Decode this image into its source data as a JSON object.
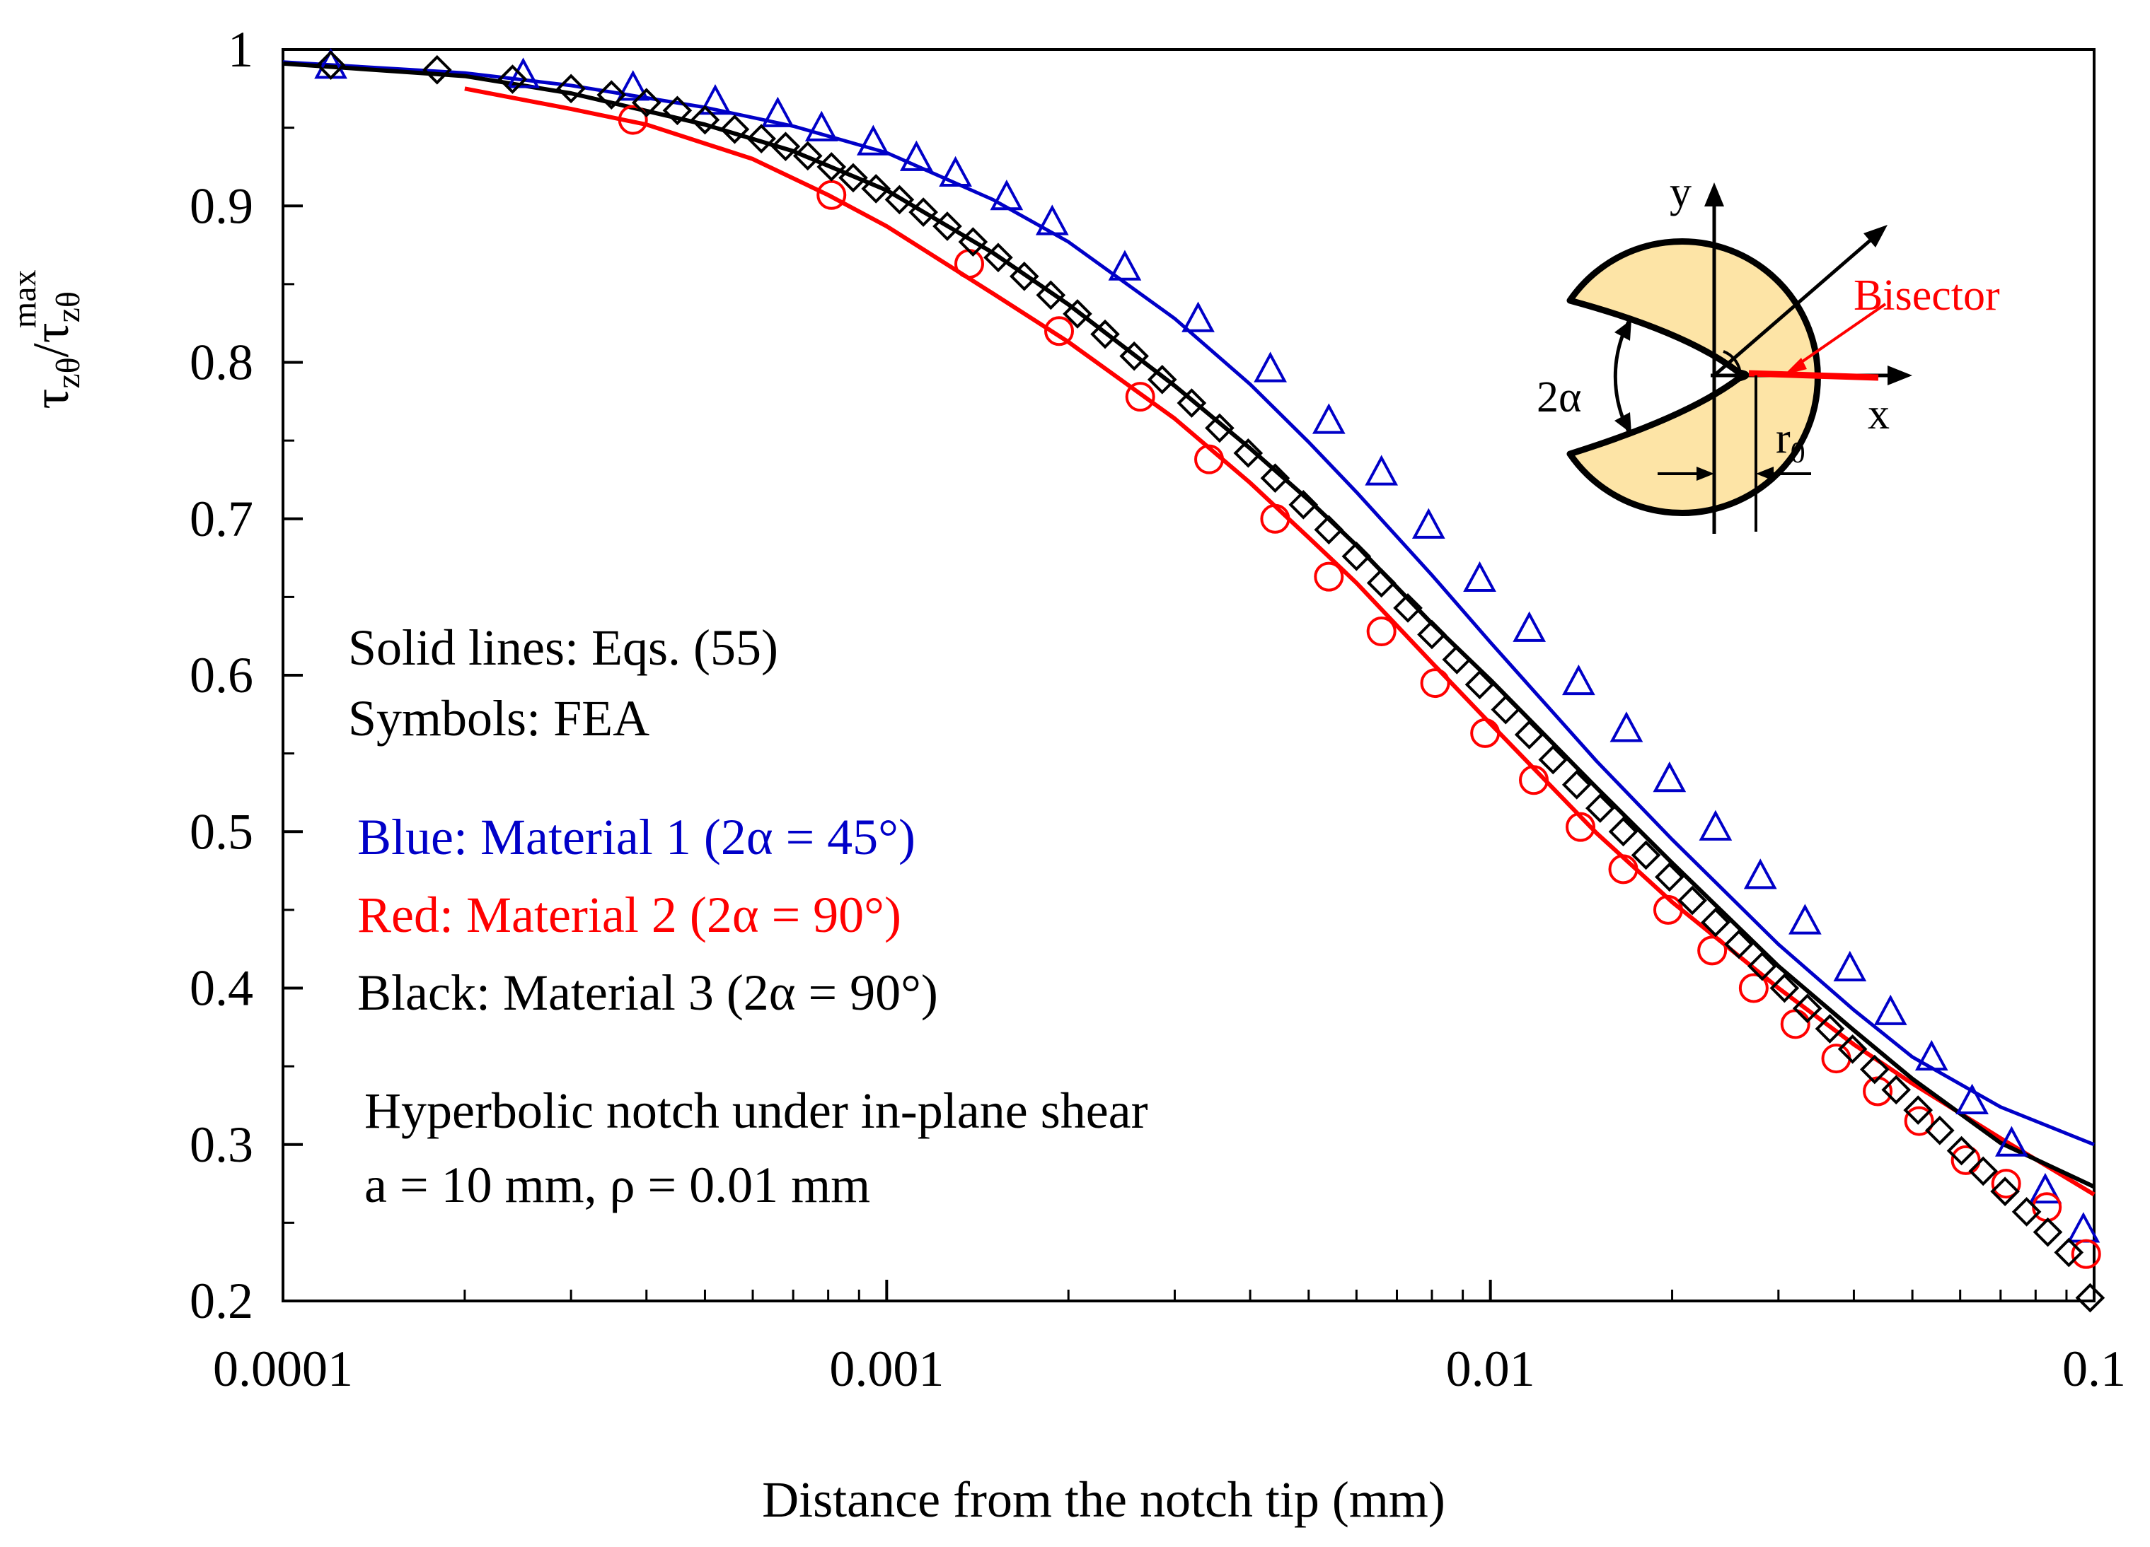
{
  "chart_data": {
    "type": "line",
    "title": "",
    "xlabel": "Distance from the notch tip (mm)",
    "ylabel": {
      "tau": "τ",
      "sub": "zθ",
      "slash": "/",
      "max": "max"
    },
    "xscale": "log",
    "xlim": [
      0.0001,
      0.1
    ],
    "ylim": [
      0.2,
      1.0
    ],
    "x_ticks": [
      {
        "value": 0.0001,
        "label": "0.0001"
      },
      {
        "value": 0.001,
        "label": "0.001"
      },
      {
        "value": 0.01,
        "label": "0.01"
      },
      {
        "value": 0.1,
        "label": "0.1"
      }
    ],
    "y_ticks": [
      {
        "value": 0.2,
        "label": "0.2"
      },
      {
        "value": 0.3,
        "label": "0.3"
      },
      {
        "value": 0.4,
        "label": "0.4"
      },
      {
        "value": 0.5,
        "label": "0.5"
      },
      {
        "value": 0.6,
        "label": "0.6"
      },
      {
        "value": 0.7,
        "label": "0.7"
      },
      {
        "value": 0.8,
        "label": "0.8"
      },
      {
        "value": 0.9,
        "label": "0.9"
      },
      {
        "value": 1.0,
        "label": "1"
      }
    ],
    "y_minor_step": 0.05,
    "grid": false,
    "series": [
      {
        "name": "Material 1 (2α = 45°) — Eqs. (55)",
        "kind": "line",
        "color": "#0000c8",
        "x": [
          0.0001,
          0.0002,
          0.0003,
          0.0005,
          0.0007,
          0.001,
          0.0015,
          0.002,
          0.003,
          0.004,
          0.005,
          0.006,
          0.008,
          0.01,
          0.015,
          0.02,
          0.03,
          0.04,
          0.05,
          0.07,
          0.1
        ],
        "y": [
          0.992,
          0.985,
          0.977,
          0.963,
          0.951,
          0.934,
          0.904,
          0.877,
          0.828,
          0.786,
          0.749,
          0.717,
          0.664,
          0.621,
          0.545,
          0.495,
          0.428,
          0.386,
          0.356,
          0.324,
          0.3
        ]
      },
      {
        "name": "Material 2 (2α = 90°) — Eqs. (55)",
        "kind": "line",
        "color": "#ff0000",
        "x": [
          0.0002,
          0.0003,
          0.0004,
          0.0006,
          0.0008,
          0.001,
          0.0015,
          0.002,
          0.003,
          0.004,
          0.005,
          0.006,
          0.008,
          0.01,
          0.015,
          0.02,
          0.03,
          0.04,
          0.05,
          0.07,
          0.1
        ],
        "y": [
          0.975,
          0.962,
          0.952,
          0.93,
          0.907,
          0.887,
          0.844,
          0.813,
          0.764,
          0.723,
          0.688,
          0.659,
          0.608,
          0.569,
          0.499,
          0.455,
          0.4,
          0.364,
          0.339,
          0.304,
          0.268
        ]
      },
      {
        "name": "Material 3 (2α = 90°) — Eqs. (55)",
        "kind": "line",
        "color": "#000000",
        "x": [
          0.0001,
          0.0002,
          0.0003,
          0.0005,
          0.0007,
          0.001,
          0.0015,
          0.002,
          0.003,
          0.004,
          0.005,
          0.006,
          0.008,
          0.01,
          0.015,
          0.02,
          0.03,
          0.04,
          0.05,
          0.07,
          0.1
        ],
        "y": [
          0.991,
          0.983,
          0.972,
          0.952,
          0.935,
          0.91,
          0.87,
          0.837,
          0.785,
          0.745,
          0.712,
          0.683,
          0.633,
          0.597,
          0.528,
          0.48,
          0.414,
          0.373,
          0.342,
          0.301,
          0.273
        ]
      },
      {
        "name": "Material 1 (2α = 45°) — FEA",
        "kind": "marker",
        "marker": "triangle",
        "color": "#0000c8",
        "x": [
          0.00012,
          0.00025,
          0.00038,
          0.00052,
          0.00066,
          0.00078,
          0.00095,
          0.00112,
          0.0013,
          0.00158,
          0.00188,
          0.00248,
          0.00328,
          0.00432,
          0.0054,
          0.0066,
          0.0079,
          0.0096,
          0.0116,
          0.014,
          0.0168,
          0.0198,
          0.0236,
          0.028,
          0.0332,
          0.0394,
          0.046,
          0.0538,
          0.0628,
          0.073,
          0.083,
          0.096
        ],
        "y": [
          0.989,
          0.983,
          0.975,
          0.966,
          0.958,
          0.949,
          0.94,
          0.93,
          0.92,
          0.905,
          0.889,
          0.86,
          0.827,
          0.795,
          0.762,
          0.729,
          0.695,
          0.661,
          0.629,
          0.595,
          0.565,
          0.533,
          0.502,
          0.471,
          0.442,
          0.412,
          0.384,
          0.355,
          0.327,
          0.3,
          0.27,
          0.245
        ]
      },
      {
        "name": "Material 2 (2α = 90°) — FEA",
        "kind": "marker",
        "marker": "circle",
        "color": "#ff0000",
        "x": [
          0.00038,
          0.00081,
          0.00137,
          0.00193,
          0.00263,
          0.00342,
          0.0044,
          0.0054,
          0.0066,
          0.0081,
          0.0098,
          0.0118,
          0.0141,
          0.0166,
          0.0197,
          0.0233,
          0.0273,
          0.032,
          0.0374,
          0.0438,
          0.0513,
          0.0613,
          0.0715,
          0.0835,
          0.097
        ],
        "y": [
          0.955,
          0.907,
          0.863,
          0.82,
          0.778,
          0.738,
          0.7,
          0.663,
          0.628,
          0.595,
          0.563,
          0.533,
          0.503,
          0.476,
          0.45,
          0.424,
          0.4,
          0.377,
          0.355,
          0.334,
          0.315,
          0.29,
          0.275,
          0.26,
          0.23
        ]
      },
      {
        "name": "Material 3 (2α = 90°) — FEA",
        "kind": "marker",
        "marker": "diamond",
        "color": "#000000",
        "x": [
          0.00012,
          0.00018,
          0.00024,
          0.0003,
          0.00035,
          0.0004,
          0.00045,
          0.0005,
          0.00056,
          0.00062,
          0.00068,
          0.00074,
          0.00081,
          0.00088,
          0.00096,
          0.00105,
          0.00115,
          0.00126,
          0.00139,
          0.00153,
          0.00169,
          0.00187,
          0.00207,
          0.0023,
          0.00257,
          0.00286,
          0.0032,
          0.00356,
          0.00397,
          0.0044,
          0.0049,
          0.0054,
          0.006,
          0.0066,
          0.0073,
          0.008,
          0.0088,
          0.0096,
          0.0106,
          0.0116,
          0.0127,
          0.0139,
          0.0152,
          0.0166,
          0.0181,
          0.0198,
          0.0216,
          0.0236,
          0.0258,
          0.0282,
          0.0307,
          0.0335,
          0.0365,
          0.0398,
          0.0433,
          0.047,
          0.0511,
          0.0555,
          0.0603,
          0.0655,
          0.0712,
          0.0773,
          0.0838,
          0.0908,
          0.0985
        ],
        "y": [
          0.99,
          0.987,
          0.981,
          0.975,
          0.971,
          0.966,
          0.961,
          0.955,
          0.949,
          0.943,
          0.938,
          0.932,
          0.925,
          0.918,
          0.911,
          0.904,
          0.896,
          0.887,
          0.877,
          0.867,
          0.855,
          0.843,
          0.831,
          0.818,
          0.804,
          0.789,
          0.774,
          0.758,
          0.742,
          0.726,
          0.709,
          0.693,
          0.676,
          0.659,
          0.643,
          0.626,
          0.61,
          0.594,
          0.578,
          0.562,
          0.546,
          0.53,
          0.515,
          0.5,
          0.485,
          0.471,
          0.456,
          0.442,
          0.428,
          0.414,
          0.4,
          0.387,
          0.374,
          0.361,
          0.348,
          0.335,
          0.322,
          0.309,
          0.296,
          0.283,
          0.27,
          0.257,
          0.244,
          0.231,
          0.202
        ]
      }
    ],
    "annotations": {
      "method_solid": "Solid lines: Eqs. (55)",
      "method_symbols": "Symbols: FEA",
      "legend_blue": "Blue: Material 1 (2α = 45°)",
      "legend_red": "Red: Material 2 (2α = 90°)",
      "legend_black": "Black: Material 3 (2α = 90°)",
      "case_title": "Hyperbolic notch under in-plane shear",
      "case_params": "a = 10 mm, ρ = 0.01 mm"
    },
    "inset": {
      "y_axis": "y",
      "x_axis": "x",
      "angle": "2α",
      "bisector": "Bisector",
      "r0_main": "r",
      "r0_sub": "0",
      "fill_color": "#fde4a6",
      "bisector_color": "#ff0000"
    }
  }
}
